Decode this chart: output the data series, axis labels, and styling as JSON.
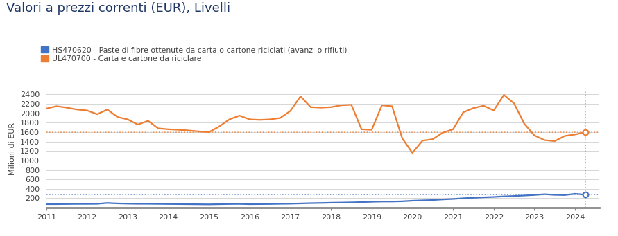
{
  "title": "Valori a prezzi correnti (EUR), Livelli",
  "ylabel": "Milioni di EUR",
  "legend": [
    "HS470620 - Paste di fibre ottenute da carta o cartone riciclati (avanzi o rifiuti)",
    "UL470700 - Carta e cartone da riciclare"
  ],
  "blue_color": "#4472C4",
  "orange_color": "#ED7D31",
  "yticks": [
    200,
    400,
    600,
    800,
    1000,
    1200,
    1400,
    1600,
    1800,
    2000,
    2200,
    2400
  ],
  "blue_hline": 280,
  "orange_hline": 1600,
  "orange_data": [
    [
      2011.0,
      2100
    ],
    [
      2011.25,
      2150
    ],
    [
      2011.5,
      2120
    ],
    [
      2011.75,
      2080
    ],
    [
      2012.0,
      2060
    ],
    [
      2012.25,
      1980
    ],
    [
      2012.5,
      2080
    ],
    [
      2012.75,
      1920
    ],
    [
      2013.0,
      1870
    ],
    [
      2013.25,
      1760
    ],
    [
      2013.5,
      1840
    ],
    [
      2013.75,
      1680
    ],
    [
      2014.0,
      1660
    ],
    [
      2014.25,
      1650
    ],
    [
      2014.5,
      1635
    ],
    [
      2014.75,
      1615
    ],
    [
      2015.0,
      1600
    ],
    [
      2015.25,
      1720
    ],
    [
      2015.5,
      1870
    ],
    [
      2015.75,
      1950
    ],
    [
      2016.0,
      1870
    ],
    [
      2016.25,
      1860
    ],
    [
      2016.5,
      1870
    ],
    [
      2016.75,
      1900
    ],
    [
      2017.0,
      2050
    ],
    [
      2017.25,
      2360
    ],
    [
      2017.5,
      2130
    ],
    [
      2017.75,
      2120
    ],
    [
      2018.0,
      2130
    ],
    [
      2018.25,
      2170
    ],
    [
      2018.5,
      2180
    ],
    [
      2018.75,
      1660
    ],
    [
      2019.0,
      1650
    ],
    [
      2019.25,
      2170
    ],
    [
      2019.5,
      2150
    ],
    [
      2019.75,
      1470
    ],
    [
      2020.0,
      1160
    ],
    [
      2020.25,
      1420
    ],
    [
      2020.5,
      1450
    ],
    [
      2020.75,
      1590
    ],
    [
      2021.0,
      1660
    ],
    [
      2021.25,
      2020
    ],
    [
      2021.5,
      2110
    ],
    [
      2021.75,
      2160
    ],
    [
      2022.0,
      2060
    ],
    [
      2022.25,
      2390
    ],
    [
      2022.5,
      2210
    ],
    [
      2022.75,
      1780
    ],
    [
      2023.0,
      1530
    ],
    [
      2023.25,
      1430
    ],
    [
      2023.5,
      1410
    ],
    [
      2023.75,
      1520
    ],
    [
      2024.0,
      1550
    ],
    [
      2024.25,
      1600
    ]
  ],
  "blue_data": [
    [
      2011.0,
      75
    ],
    [
      2011.25,
      75
    ],
    [
      2011.5,
      78
    ],
    [
      2011.75,
      80
    ],
    [
      2012.0,
      80
    ],
    [
      2012.25,
      82
    ],
    [
      2012.5,
      100
    ],
    [
      2012.75,
      90
    ],
    [
      2013.0,
      85
    ],
    [
      2013.25,
      82
    ],
    [
      2013.5,
      82
    ],
    [
      2013.75,
      80
    ],
    [
      2014.0,
      78
    ],
    [
      2014.25,
      76
    ],
    [
      2014.5,
      74
    ],
    [
      2014.75,
      72
    ],
    [
      2015.0,
      70
    ],
    [
      2015.25,
      74
    ],
    [
      2015.5,
      78
    ],
    [
      2015.75,
      80
    ],
    [
      2016.0,
      74
    ],
    [
      2016.25,
      76
    ],
    [
      2016.5,
      78
    ],
    [
      2016.75,
      82
    ],
    [
      2017.0,
      84
    ],
    [
      2017.25,
      90
    ],
    [
      2017.5,
      96
    ],
    [
      2017.75,
      100
    ],
    [
      2018.0,
      105
    ],
    [
      2018.25,
      108
    ],
    [
      2018.5,
      112
    ],
    [
      2018.75,
      118
    ],
    [
      2019.0,
      125
    ],
    [
      2019.25,
      130
    ],
    [
      2019.5,
      130
    ],
    [
      2019.75,
      135
    ],
    [
      2020.0,
      148
    ],
    [
      2020.25,
      155
    ],
    [
      2020.5,
      162
    ],
    [
      2020.75,
      175
    ],
    [
      2021.0,
      185
    ],
    [
      2021.25,
      200
    ],
    [
      2021.5,
      210
    ],
    [
      2021.75,
      220
    ],
    [
      2022.0,
      228
    ],
    [
      2022.25,
      240
    ],
    [
      2022.5,
      248
    ],
    [
      2022.75,
      258
    ],
    [
      2023.0,
      270
    ],
    [
      2023.25,
      285
    ],
    [
      2023.5,
      272
    ],
    [
      2023.75,
      268
    ],
    [
      2024.0,
      295
    ],
    [
      2024.25,
      275
    ]
  ],
  "last_x": 2024.25,
  "last_orange_y": 1600,
  "last_blue_y": 275,
  "xlim": [
    2011,
    2024.6
  ],
  "ylim": [
    0,
    2500
  ],
  "xtick_years": [
    2011,
    2012,
    2013,
    2014,
    2015,
    2016,
    2017,
    2018,
    2019,
    2020,
    2021,
    2022,
    2023,
    2024
  ],
  "title_color": "#1f3864",
  "tick_label_color": "#404040",
  "spine_bottom_color": "#aaaaaa",
  "grid_color": "#d0d0d0"
}
